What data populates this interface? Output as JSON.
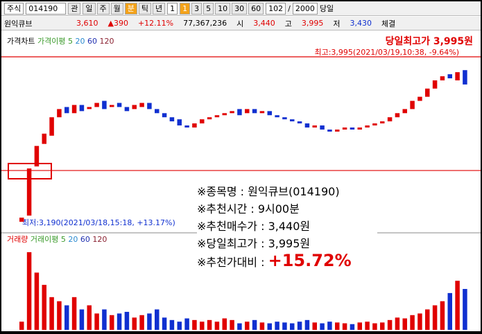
{
  "toolbar": {
    "market": "주식",
    "code": "014190",
    "watch": "관",
    "periods": [
      "일",
      "주",
      "월",
      "분",
      "틱",
      "년"
    ],
    "interval": "1",
    "minute_options": [
      "1",
      "3",
      "5",
      "10",
      "30",
      "60"
    ],
    "count": "102",
    "total": "2000",
    "today": "당일"
  },
  "quote": {
    "name": "원익큐브",
    "price": "3,610",
    "change": "▲390",
    "rate": "+12.11%",
    "volume": "77,367,236",
    "open_label": "시",
    "open": "3,440",
    "high_label": "고",
    "high": "3,995",
    "low_label": "저",
    "low": "3,430",
    "trade": "체결"
  },
  "price_legend": {
    "title": "가격차트",
    "ma": "가격이평 5",
    "ma20": "20",
    "ma60": "60",
    "ma120": "120"
  },
  "volume_legend": {
    "title": "거래량",
    "ma": "거래이평 5",
    "ma20": "20",
    "ma60": "60",
    "ma120": "120"
  },
  "annotations": {
    "day_high": "당일최고가 3,995원",
    "max": "최고:3,995(2021/03/19,10:38, -9.64%)",
    "min": "최저:3,190(2021/03/18,15:18, +13.17%)"
  },
  "info_box": {
    "lines": [
      "※종목명 :  원익큐브(014190)",
      "※추천시간 : 9시00분",
      "※추천매수가 : 3,440원",
      "※당일최고가 : 3,995원"
    ],
    "gain_label": "※추천가대비 :",
    "gain": "+15.72%"
  },
  "chart_data": {
    "type": "candlestick",
    "ylim": [
      3190,
      3995
    ],
    "reference_lines": [
      3995,
      3440
    ],
    "open": [
      3190,
      3220,
      3460,
      3570,
      3610,
      3700,
      3750,
      3720,
      3760,
      3740,
      3750,
      3780,
      3750,
      3770,
      3750,
      3740,
      3750,
      3770,
      3740,
      3720,
      3700,
      3690,
      3660,
      3650,
      3670,
      3690,
      3700,
      3710,
      3720,
      3740,
      3720,
      3740,
      3720,
      3730,
      3710,
      3700,
      3690,
      3680,
      3670,
      3650,
      3660,
      3640,
      3630,
      3640,
      3650,
      3640,
      3650,
      3660,
      3670,
      3680,
      3700,
      3720,
      3740,
      3780,
      3800,
      3840,
      3880,
      3910,
      3880,
      3930
    ],
    "close": [
      3210,
      3450,
      3560,
      3620,
      3700,
      3740,
      3720,
      3760,
      3730,
      3750,
      3770,
      3740,
      3760,
      3750,
      3730,
      3760,
      3770,
      3740,
      3720,
      3700,
      3680,
      3660,
      3650,
      3670,
      3690,
      3700,
      3710,
      3720,
      3730,
      3710,
      3740,
      3720,
      3730,
      3710,
      3700,
      3690,
      3680,
      3670,
      3650,
      3660,
      3640,
      3630,
      3640,
      3650,
      3640,
      3650,
      3660,
      3670,
      3680,
      3700,
      3720,
      3740,
      3780,
      3800,
      3840,
      3880,
      3900,
      3890,
      3920,
      3860
    ],
    "volume_ylim": [
      0,
      100
    ],
    "volume": [
      10,
      95,
      70,
      55,
      40,
      35,
      30,
      40,
      25,
      30,
      20,
      25,
      18,
      20,
      22,
      15,
      18,
      20,
      25,
      15,
      12,
      10,
      14,
      12,
      10,
      12,
      10,
      14,
      12,
      8,
      10,
      12,
      9,
      8,
      10,
      9,
      8,
      10,
      12,
      9,
      8,
      10,
      9,
      8,
      7,
      9,
      10,
      8,
      9,
      12,
      15,
      14,
      18,
      20,
      25,
      30,
      35,
      45,
      60,
      50
    ],
    "up_color": "#e00000",
    "down_color": "#1030d0"
  }
}
